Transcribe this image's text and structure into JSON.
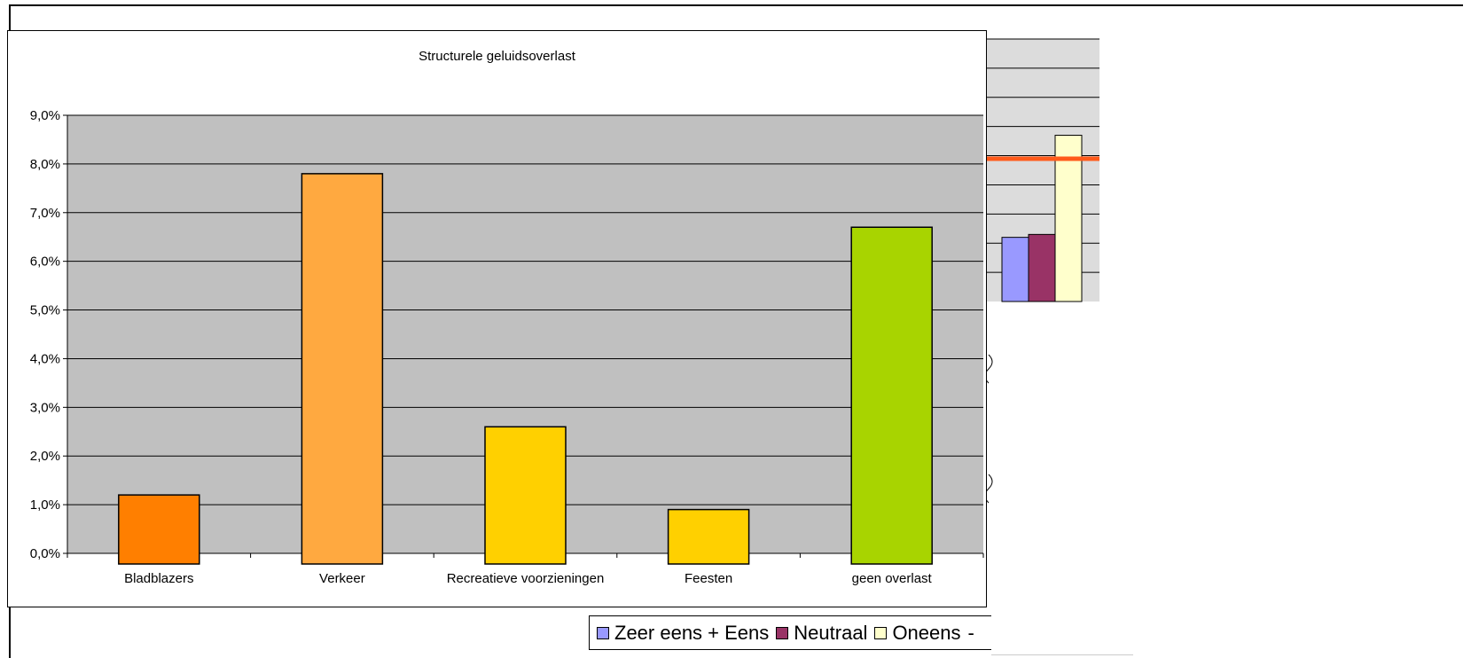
{
  "chart_data": [
    {
      "type": "bar",
      "title": "Structurele geluidsoverlast",
      "xlabel": "",
      "ylabel": "",
      "categories": [
        "Bladblazers",
        "Verkeer",
        "Recreatieve voorzieningen",
        "Feesten",
        "geen overlast"
      ],
      "values": [
        1.2,
        7.8,
        2.6,
        0.9,
        6.7
      ],
      "y_tick_labels": [
        "0,0%",
        "1,0%",
        "2,0%",
        "3,0%",
        "4,0%",
        "5,0%",
        "6,0%",
        "7,0%",
        "8,0%",
        "9,0%"
      ],
      "ylim": [
        0,
        9
      ],
      "grid": true,
      "plot_background": "#C0C0C0",
      "bar_colors": [
        "#FF7F00",
        "#FFA940",
        "#FFD000",
        "#FFD000",
        "#A8D400"
      ]
    },
    {
      "type": "bar",
      "partially_hidden": true,
      "grid": true,
      "plot_background": "#DCDCDC",
      "series": [
        {
          "name": "Zeer eens + Eens",
          "color": "#9999FF",
          "values": [
            22
          ]
        },
        {
          "name": "Neutraal",
          "color": "#993366",
          "values": [
            23
          ]
        },
        {
          "name": "Oneens",
          "color": "#FFFFCC",
          "values": [
            57
          ]
        }
      ],
      "reference_line_color": "#FF5A1A",
      "legend": {
        "items": [
          {
            "label": "Zeer eens + Eens",
            "color": "#9999FF"
          },
          {
            "label": "Neutraal",
            "color": "#993366"
          },
          {
            "label": "Oneens",
            "color": "#FFFFCC"
          }
        ],
        "trailing_text": "-"
      }
    }
  ]
}
